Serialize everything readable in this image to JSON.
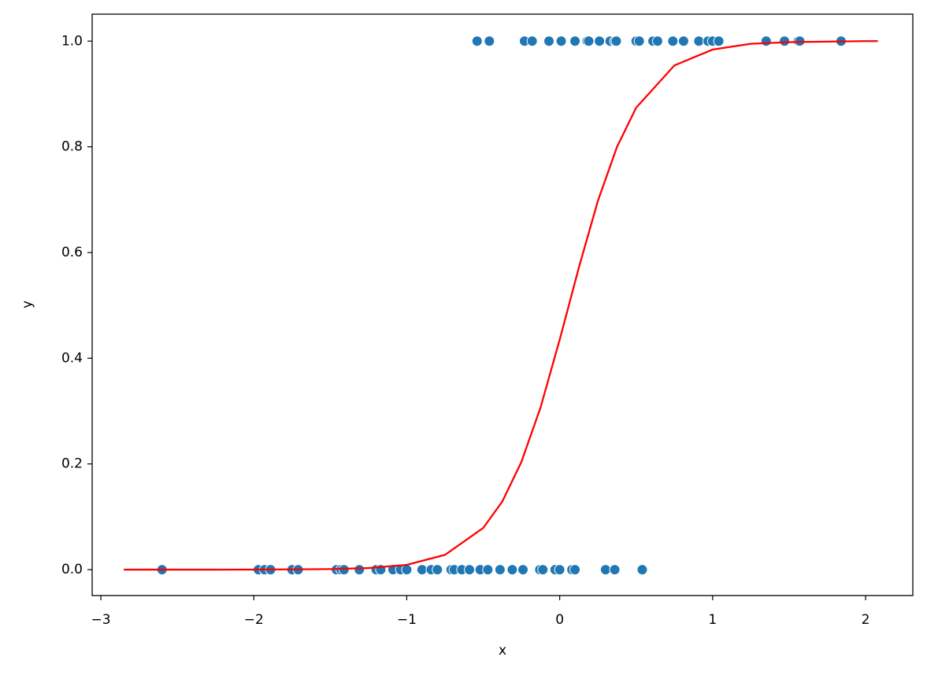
{
  "chart_data": {
    "type": "scatter",
    "x_label": "x",
    "y_label": "y",
    "xlim": [
      -3.057,
      2.309
    ],
    "ylim": [
      -0.049,
      1.051
    ],
    "xticks": [
      {
        "value": -3,
        "label": "−3"
      },
      {
        "value": -2,
        "label": "−2"
      },
      {
        "value": -1,
        "label": "−1"
      },
      0,
      1,
      2
    ],
    "yticks": [
      {
        "value": 0,
        "label": "0.0"
      },
      0.2,
      0.4,
      0.6,
      0.8,
      {
        "value": 1,
        "label": "1.0"
      }
    ],
    "series": [
      {
        "type": "scatter",
        "color": "#1f77b4",
        "x": [
          -0.54,
          -0.46,
          -0.23,
          -0.18,
          -0.07,
          0.01,
          0.1,
          0.18,
          0.19,
          0.26,
          0.33,
          0.36,
          0.37,
          0.5,
          0.52,
          0.61,
          0.64,
          0.74,
          0.81,
          0.91,
          0.97,
          1.0,
          1.04,
          1.35,
          1.47,
          1.56,
          1.57,
          1.84,
          -2.6,
          -1.97,
          -1.93,
          -1.89,
          -1.75,
          -1.71,
          -1.46,
          -1.43,
          -1.41,
          -1.31,
          -1.2,
          -1.17,
          -1.09,
          -1.04,
          -1.0,
          -0.9,
          -0.84,
          -0.8,
          -0.71,
          -0.69,
          -0.64,
          -0.59,
          -0.52,
          -0.47,
          -0.39,
          -0.31,
          -0.24,
          -0.13,
          -0.11,
          -0.03,
          0.0,
          0.08,
          0.1,
          0.3,
          0.36,
          0.54
        ],
        "y": [
          1,
          1,
          1,
          1,
          1,
          1,
          1,
          1,
          1,
          1,
          1,
          1,
          1,
          1,
          1,
          1,
          1,
          1,
          1,
          1,
          1,
          1,
          1,
          1,
          1,
          1,
          1,
          1,
          0,
          0,
          0,
          0,
          0,
          0,
          0,
          0,
          0,
          0,
          0,
          0,
          0,
          0,
          0,
          0,
          0,
          0,
          0,
          0,
          0,
          0,
          0,
          0,
          0,
          0,
          0,
          0,
          0,
          0,
          0,
          0,
          0,
          0,
          0,
          0
        ]
      },
      {
        "type": "line",
        "color": "#ff0000",
        "x": [
          -2.85,
          -2.5,
          -2,
          -1.5,
          -1.25,
          -1,
          -0.75,
          -0.5,
          -0.375,
          -0.25,
          -0.125,
          0,
          0.125,
          0.25,
          0.375,
          0.5,
          0.75,
          1,
          1.25,
          1.5,
          2,
          2.08
        ],
        "y": [
          0.0,
          0.0,
          0.0001,
          0.001,
          0.003,
          0.009,
          0.028,
          0.079,
          0.129,
          0.204,
          0.307,
          0.435,
          0.571,
          0.698,
          0.8,
          0.874,
          0.954,
          0.984,
          0.995,
          0.998,
          1.0,
          1.0
        ]
      }
    ]
  }
}
